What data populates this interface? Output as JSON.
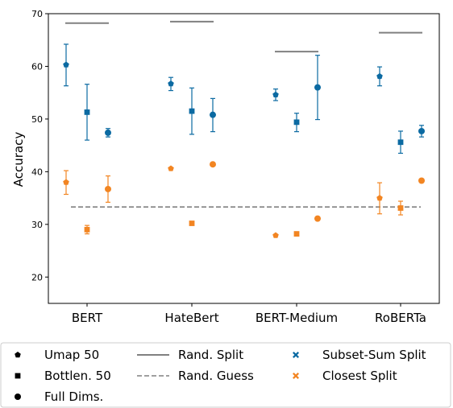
{
  "chart_data": {
    "type": "scatter",
    "title": "",
    "xlabel": "",
    "ylabel": "Accuracy",
    "ylim": [
      15,
      70
    ],
    "yticks": [
      20,
      30,
      40,
      50,
      60,
      70
    ],
    "categories": [
      "BERT",
      "HateBert",
      "BERT-Medium",
      "RoBERTa"
    ],
    "grid": false,
    "legend_position": "bottom",
    "colors": {
      "subset_sum": "#0b6aa2",
      "closest": "#f28522",
      "rand_split": "#808080",
      "rand_guess": "#808080"
    },
    "rand_guess": 33.3,
    "rand_split": [
      68.2,
      68.5,
      62.8,
      66.4
    ],
    "series": [
      {
        "split": "Subset-Sum Split",
        "dims": "Umap 50",
        "marker": "pentagon",
        "values": [
          60.3,
          56.7,
          54.6,
          58.1
        ],
        "err_low": [
          56.3,
          55.4,
          53.5,
          56.3
        ],
        "err_high": [
          64.2,
          57.9,
          55.7,
          59.9
        ]
      },
      {
        "split": "Subset-Sum Split",
        "dims": "Bottlen. 50",
        "marker": "square",
        "values": [
          51.3,
          51.5,
          49.4,
          45.6
        ],
        "err_low": [
          46.0,
          47.1,
          47.6,
          43.5
        ],
        "err_high": [
          56.6,
          55.9,
          51.1,
          47.7
        ]
      },
      {
        "split": "Subset-Sum Split",
        "dims": "Full Dims.",
        "marker": "circle",
        "values": [
          47.4,
          50.8,
          56.0,
          47.7
        ],
        "err_low": [
          46.6,
          47.6,
          49.9,
          46.6
        ],
        "err_high": [
          48.2,
          53.9,
          62.1,
          48.8
        ]
      },
      {
        "split": "Closest Split",
        "dims": "Umap 50",
        "marker": "pentagon",
        "values": [
          38.0,
          40.6,
          27.9,
          35.0
        ],
        "err_low": [
          35.7,
          40.6,
          27.9,
          32.0
        ],
        "err_high": [
          40.2,
          40.6,
          27.9,
          37.9
        ]
      },
      {
        "split": "Closest Split",
        "dims": "Bottlen. 50",
        "marker": "square",
        "values": [
          29.0,
          30.2,
          28.2,
          33.1
        ],
        "err_low": [
          28.2,
          30.2,
          28.2,
          31.8
        ],
        "err_high": [
          29.8,
          30.2,
          28.2,
          34.4
        ]
      },
      {
        "split": "Closest Split",
        "dims": "Full Dims.",
        "marker": "circle",
        "values": [
          36.7,
          41.4,
          31.1,
          38.3
        ],
        "err_low": [
          34.2,
          41.4,
          31.1,
          38.3
        ],
        "err_high": [
          39.2,
          41.4,
          31.1,
          38.3
        ]
      }
    ],
    "legend": [
      {
        "label": "Umap 50",
        "symbol": "pentagon"
      },
      {
        "label": "Bottlen. 50",
        "symbol": "square"
      },
      {
        "label": "Full Dims.",
        "symbol": "circle"
      },
      {
        "label": "Rand. Split",
        "symbol": "solid-line"
      },
      {
        "label": "Rand. Guess",
        "symbol": "dashed-line"
      },
      {
        "label": "Subset-Sum Split",
        "symbol": "blue-x"
      },
      {
        "label": "Closest Split",
        "symbol": "orange-x"
      }
    ]
  }
}
